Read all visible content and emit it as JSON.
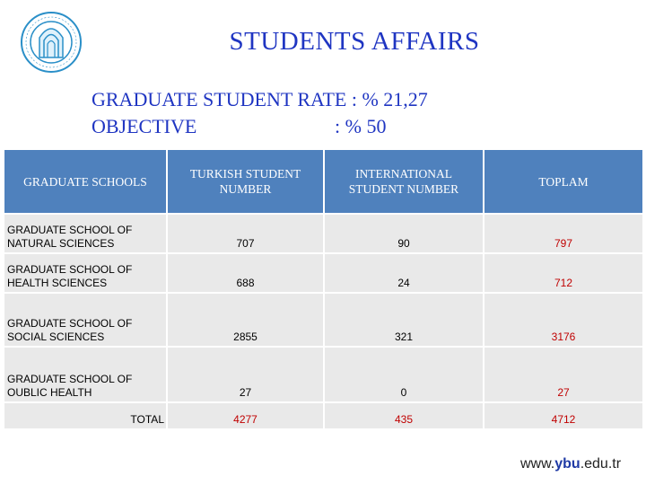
{
  "header": {
    "title": "STUDENTS AFFAIRS"
  },
  "stats": {
    "rate_label": "GRADUATE STUDENT RATE : % 21,27",
    "objective_label": "OBJECTIVE",
    "objective_value": ": % 50"
  },
  "table": {
    "headers": [
      "GRADUATE SCHOOLS",
      "TURKISH STUDENT NUMBER",
      "INTERNATIONAL STUDENT NUMBER",
      "TOPLAM"
    ],
    "rows": [
      {
        "school": "GRADUATE SCHOOL OF NATURAL SCIENCES",
        "turkish": "707",
        "international": "90",
        "total": "797"
      },
      {
        "school": "GRADUATE SCHOOL OF HEALTH SCIENCES",
        "turkish": "688",
        "international": "24",
        "total": "712"
      },
      {
        "school": "GRADUATE SCHOOL OF SOCIAL SCIENCES",
        "turkish": "2855",
        "international": "321",
        "total": "3176"
      },
      {
        "school": "GRADUATE SCHOOL OF OUBLIC HEALTH",
        "turkish": "27",
        "international": "0",
        "total": "27"
      }
    ],
    "total_row": {
      "label": "TOTAL",
      "turkish": "4277",
      "international": "435",
      "total": "4712"
    }
  },
  "footer": {
    "url_prefix": "www.",
    "url_brand": "ybu",
    "url_suffix": ".edu.tr"
  },
  "colors": {
    "title_blue": "#1f35c2",
    "header_blue": "#4f81bd",
    "cell_gray": "#e9e9e9",
    "total_red": "#c00000"
  },
  "icons": {
    "logo": "university-seal-icon"
  }
}
